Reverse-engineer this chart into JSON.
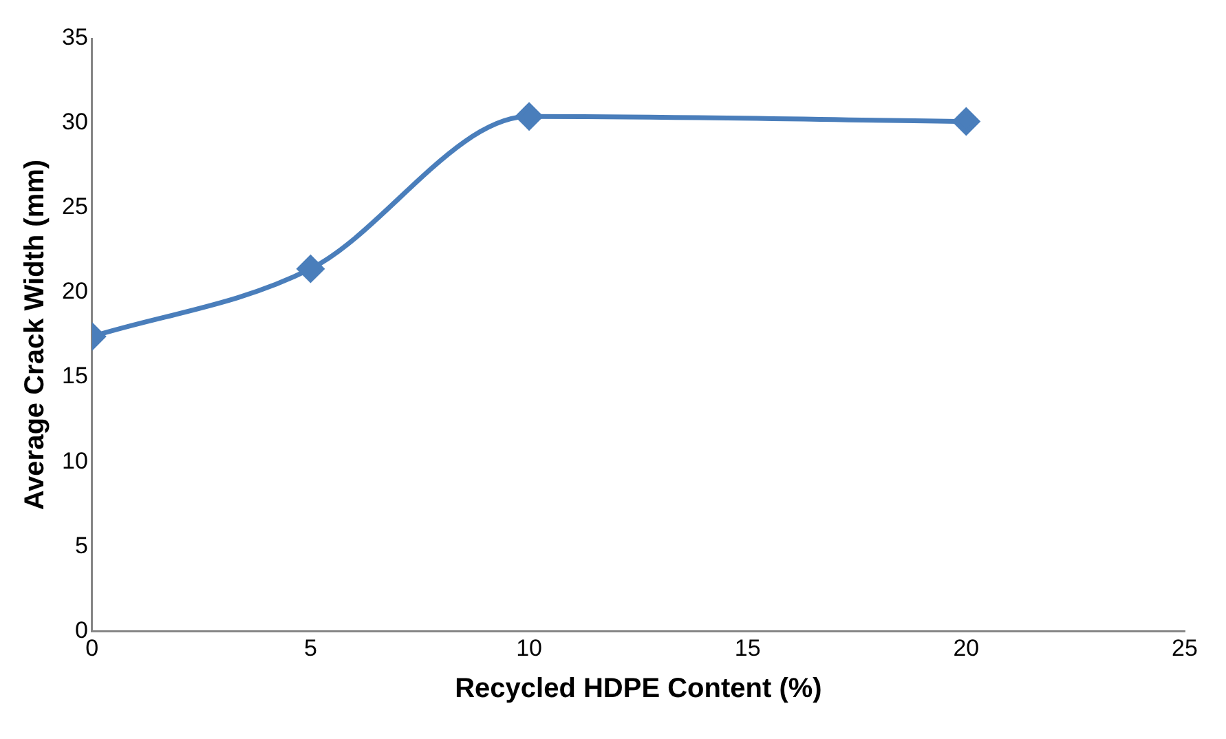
{
  "chart_data": {
    "type": "line",
    "xlabel": "Recycled HDPE Content (%)",
    "ylabel": "Average Crack Width (mm)",
    "x": [
      0,
      5,
      10,
      20
    ],
    "series": [
      {
        "color": "#4a7ebb",
        "values": [
          17.4,
          21.4,
          30.4,
          30.1
        ]
      }
    ],
    "xlim": [
      0,
      25
    ],
    "xticks": [
      0,
      5,
      10,
      15,
      20,
      25
    ],
    "ylim": [
      0,
      35
    ],
    "yticks": [
      0,
      5,
      10,
      15,
      20,
      25,
      30,
      35
    ],
    "grid": false,
    "legend": false,
    "marker": "diamond",
    "line_style": "solid"
  }
}
